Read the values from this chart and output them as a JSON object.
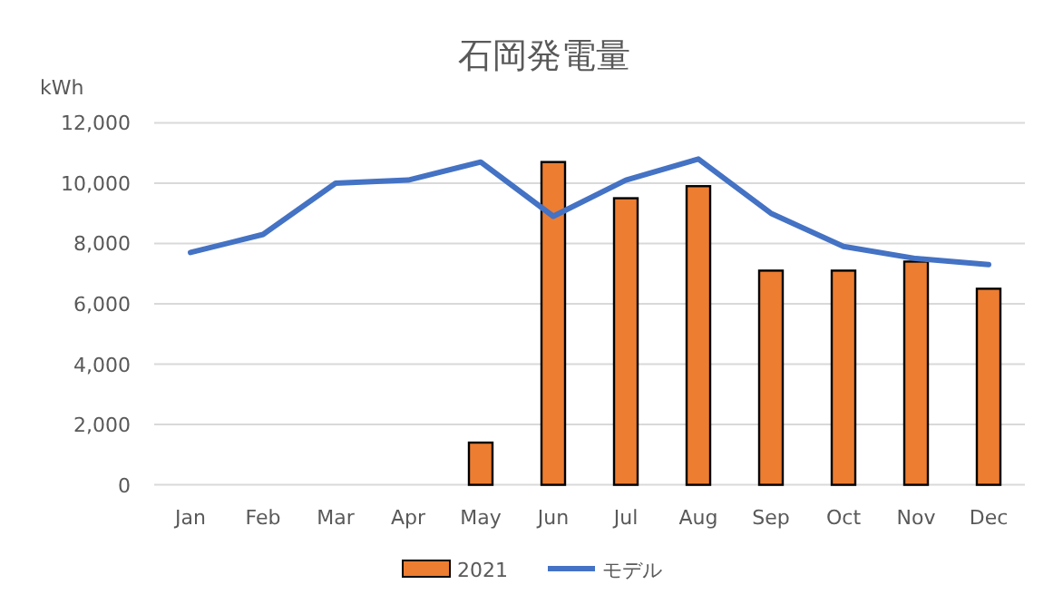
{
  "chart_data": {
    "type": "bar",
    "title": "石岡発電量",
    "ylabel": "kWh",
    "categories": [
      "Jan",
      "Feb",
      "Mar",
      "Apr",
      "May",
      "Jun",
      "Jul",
      "Aug",
      "Sep",
      "Oct",
      "Nov",
      "Dec"
    ],
    "series": [
      {
        "name": "2021",
        "color": "#ed7d31",
        "values": [
          null,
          null,
          null,
          null,
          1400,
          10700,
          9500,
          9900,
          7100,
          7100,
          7400,
          6500
        ]
      },
      {
        "name": "モデル",
        "type": "line",
        "color": "#4472c4",
        "values": [
          7700,
          8300,
          10000,
          10100,
          10700,
          8900,
          10100,
          10800,
          9000,
          7900,
          7500,
          7300
        ]
      }
    ],
    "ylim": [
      0,
      12000
    ],
    "yticks": [
      {
        "value": 0,
        "label": "0"
      },
      {
        "value": 2000,
        "label": "2,000"
      },
      {
        "value": 4000,
        "label": "4,000"
      },
      {
        "value": 6000,
        "label": "6,000"
      },
      {
        "value": 8000,
        "label": "8,000"
      },
      {
        "value": 10000,
        "label": "10,000"
      },
      {
        "value": 12000,
        "label": "12,000"
      }
    ],
    "grid": "y",
    "legend": "bottom",
    "line_style": "solid",
    "marker": "none"
  }
}
